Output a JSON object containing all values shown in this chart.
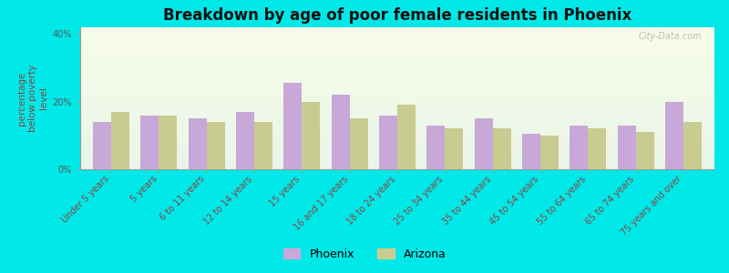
{
  "title": "Breakdown by age of poor female residents in Phoenix",
  "ylabel": "percentage\nbelow poverty\nlevel",
  "categories": [
    "Under 5 years",
    "5 years",
    "6 to 11 years",
    "12 to 14 years",
    "15 years",
    "16 and 17 years",
    "18 to 24 years",
    "25 to 34 years",
    "35 to 44 years",
    "45 to 54 years",
    "55 to 64 years",
    "65 to 74 years",
    "75 years and over"
  ],
  "phoenix_values": [
    14.0,
    16.0,
    15.0,
    17.0,
    25.5,
    22.0,
    16.0,
    13.0,
    15.0,
    10.5,
    13.0,
    13.0,
    20.0
  ],
  "arizona_values": [
    17.0,
    16.0,
    14.0,
    14.0,
    20.0,
    15.0,
    19.0,
    12.0,
    12.0,
    10.0,
    12.0,
    11.0,
    14.0
  ],
  "phoenix_color": "#c8a8d8",
  "arizona_color": "#c8cc90",
  "background_color": "#00e8e8",
  "ylim": [
    0,
    42
  ],
  "yticks": [
    0,
    20,
    40
  ],
  "ytick_labels": [
    "0%",
    "20%",
    "40%"
  ],
  "bar_width": 0.38,
  "title_fontsize": 12,
  "axis_label_fontsize": 7.5,
  "tick_label_fontsize": 7,
  "legend_fontsize": 9,
  "watermark_text": "City-Data.com"
}
